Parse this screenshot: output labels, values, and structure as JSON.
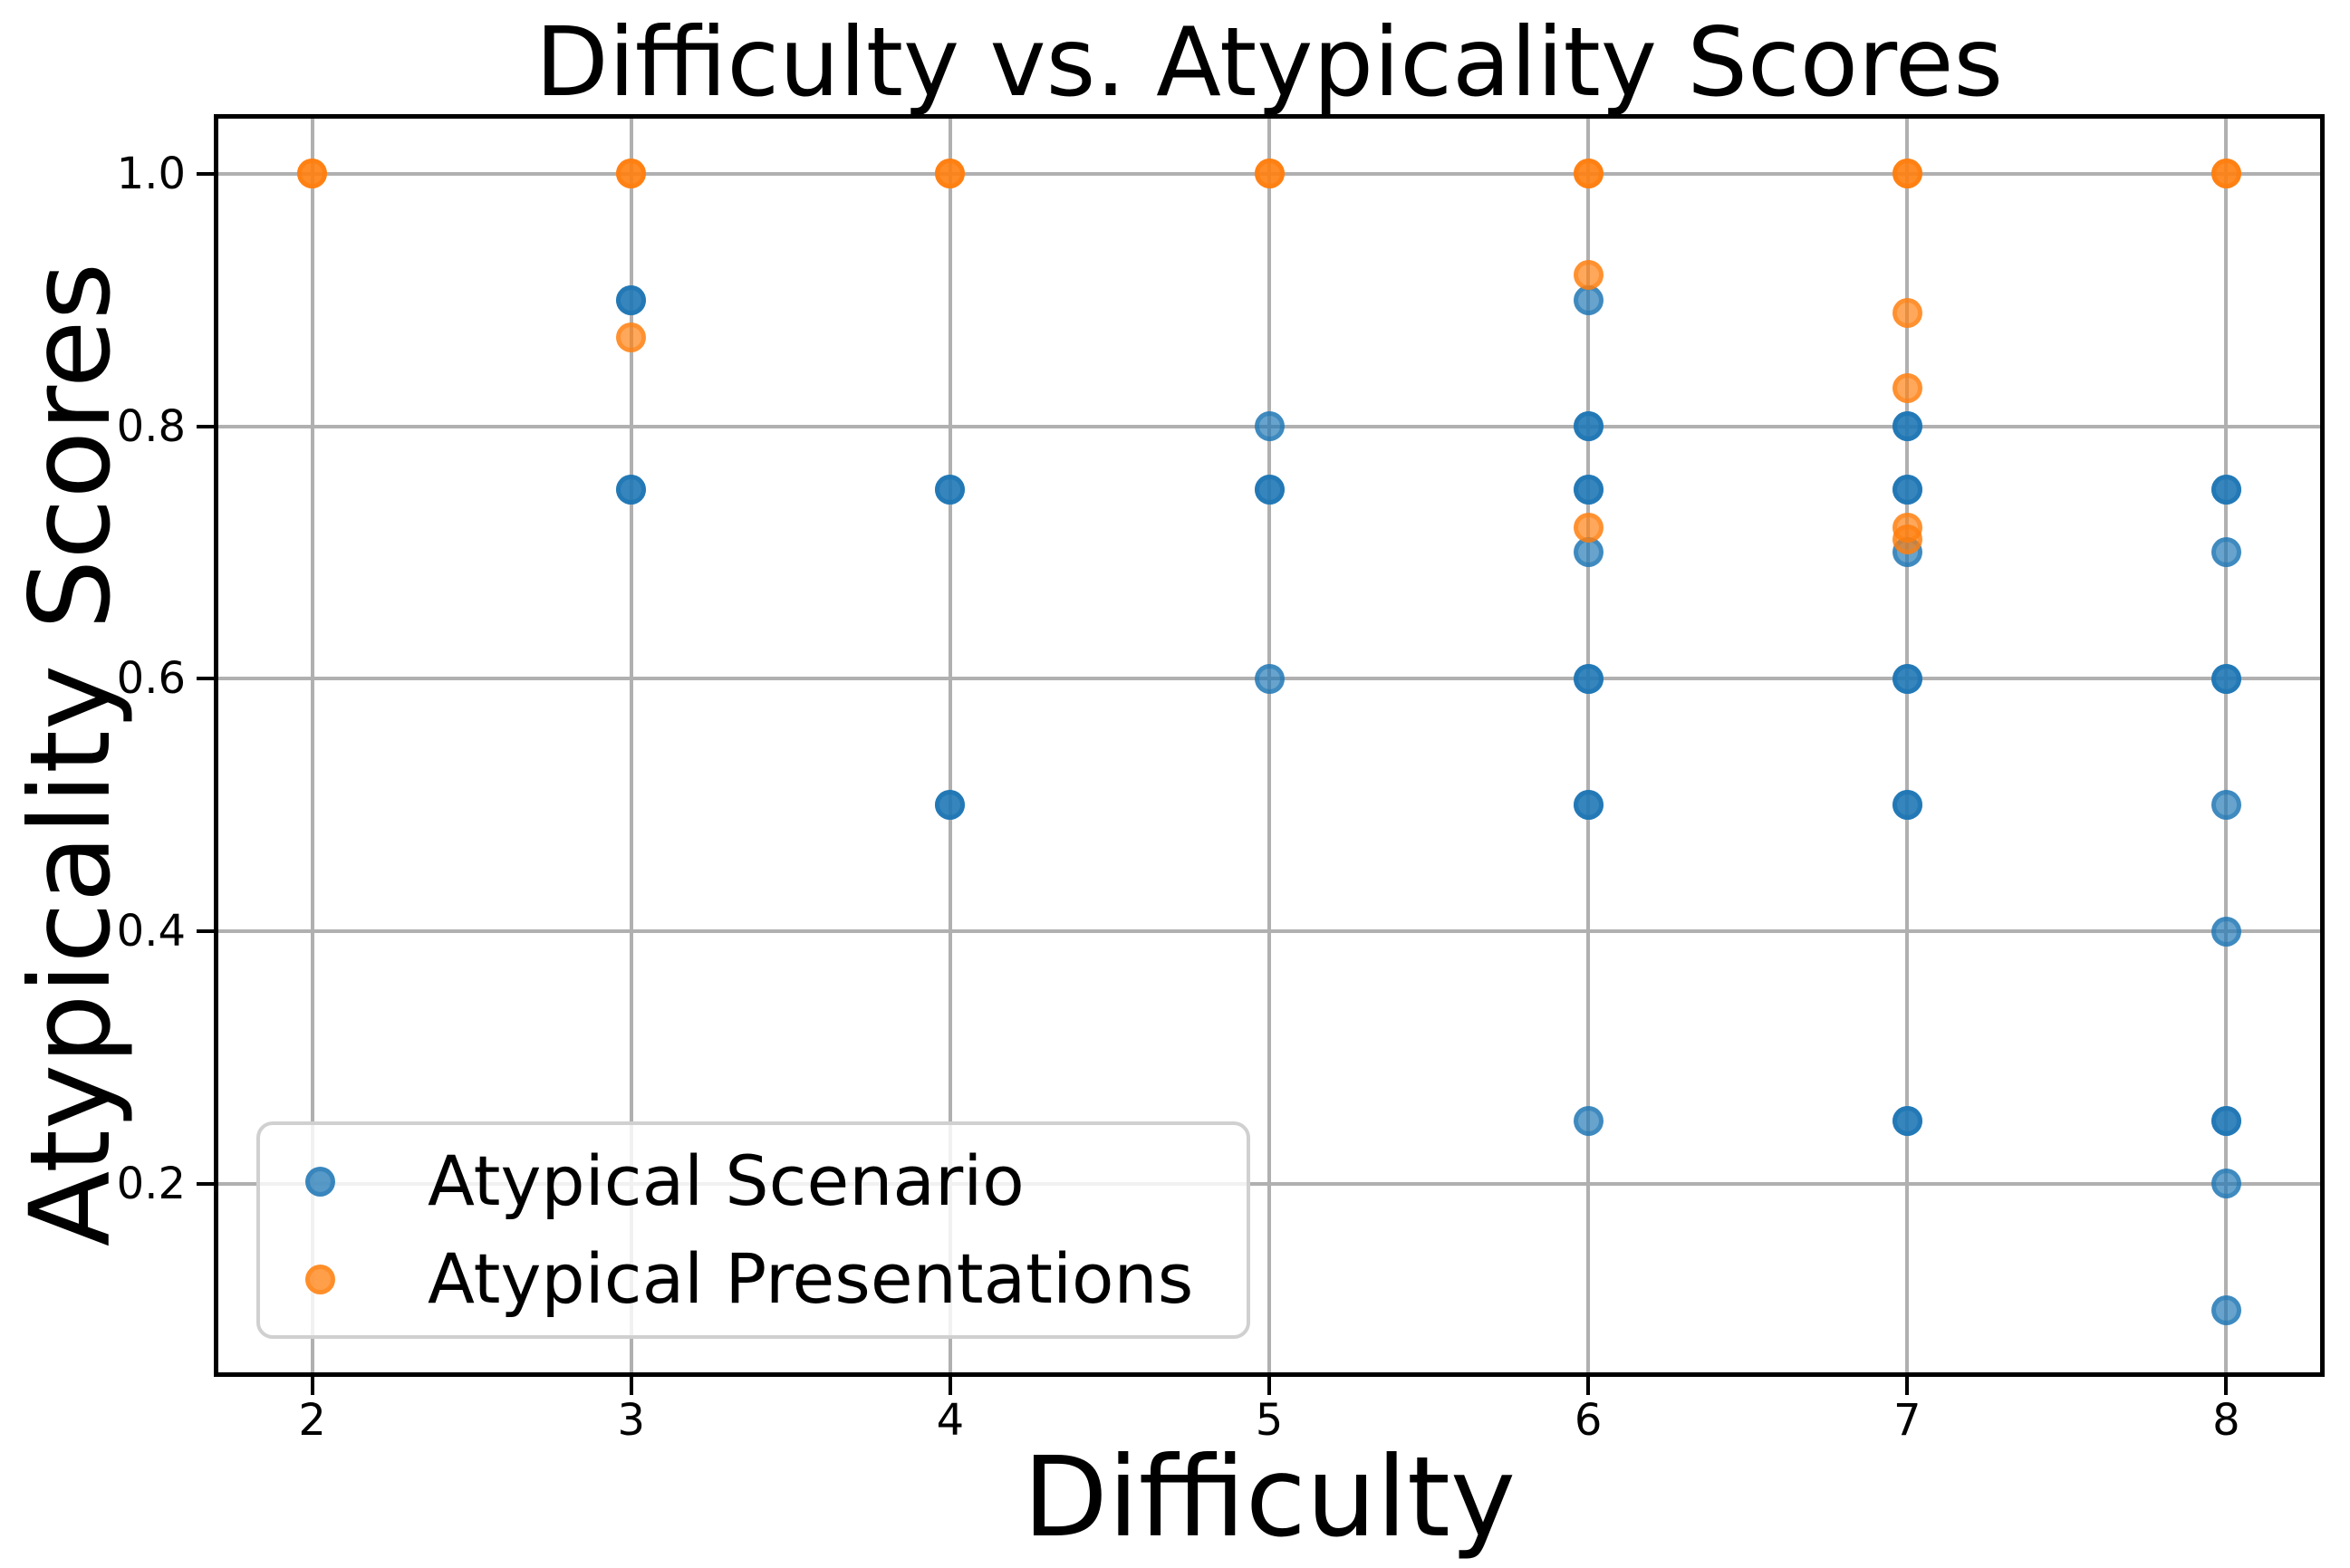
{
  "title": "Difficulty vs. Atypicality Scores",
  "axes": {
    "xlabel": "Difficulty",
    "ylabel": "Atypicality Scores"
  },
  "legend": {
    "items": [
      {
        "label": "Atypical Scenario",
        "color": "#1f77b4"
      },
      {
        "label": "Atypical Presentations",
        "color": "#ff7f0e"
      }
    ]
  },
  "colors": {
    "scenario_blue": "#1f77b4",
    "presentation_orange": "#ff7f0e",
    "grid": "#b0b0b0",
    "spine": "#000000",
    "legend_border": "#d0d0d0"
  },
  "chart_data": {
    "type": "scatter",
    "title": "Difficulty vs. Atypicality Scores",
    "xlabel": "Difficulty",
    "ylabel": "Atypicality Scores",
    "xlim": [
      1.7,
      8.3
    ],
    "ylim": [
      0.05,
      1.045
    ],
    "xticks": [
      2,
      3,
      4,
      5,
      6,
      7,
      8
    ],
    "yticks": [
      0.2,
      0.4,
      0.6,
      0.8,
      1.0
    ],
    "grid": true,
    "marker_alpha": 0.68,
    "legend_position": "lower left",
    "series": [
      {
        "name": "Atypical Scenario",
        "color": "#1f77b4",
        "points": [
          {
            "x": 3,
            "y": 0.9,
            "overlap": 2
          },
          {
            "x": 3,
            "y": 0.75,
            "overlap": 2
          },
          {
            "x": 4,
            "y": 0.75,
            "overlap": 2
          },
          {
            "x": 4,
            "y": 0.5,
            "overlap": 2
          },
          {
            "x": 5,
            "y": 0.8,
            "overlap": 1
          },
          {
            "x": 5,
            "y": 0.75,
            "overlap": 2
          },
          {
            "x": 5,
            "y": 0.6,
            "overlap": 1
          },
          {
            "x": 6,
            "y": 0.9,
            "overlap": 1
          },
          {
            "x": 6,
            "y": 0.8,
            "overlap": 2
          },
          {
            "x": 6,
            "y": 0.75,
            "overlap": 2
          },
          {
            "x": 6,
            "y": 0.7,
            "overlap": 1
          },
          {
            "x": 6,
            "y": 0.6,
            "overlap": 2
          },
          {
            "x": 6,
            "y": 0.5,
            "overlap": 2
          },
          {
            "x": 6,
            "y": 0.25,
            "overlap": 1
          },
          {
            "x": 7,
            "y": 0.8,
            "overlap": 2
          },
          {
            "x": 7,
            "y": 0.75,
            "overlap": 2
          },
          {
            "x": 7,
            "y": 0.7,
            "overlap": 1
          },
          {
            "x": 7,
            "y": 0.6,
            "overlap": 2
          },
          {
            "x": 7,
            "y": 0.5,
            "overlap": 2
          },
          {
            "x": 7,
            "y": 0.25,
            "overlap": 2
          },
          {
            "x": 8,
            "y": 0.75,
            "overlap": 2
          },
          {
            "x": 8,
            "y": 0.7,
            "overlap": 1
          },
          {
            "x": 8,
            "y": 0.6,
            "overlap": 2
          },
          {
            "x": 8,
            "y": 0.5,
            "overlap": 1
          },
          {
            "x": 8,
            "y": 0.4,
            "overlap": 1
          },
          {
            "x": 8,
            "y": 0.25,
            "overlap": 2
          },
          {
            "x": 8,
            "y": 0.2,
            "overlap": 1
          },
          {
            "x": 8,
            "y": 0.1,
            "overlap": 1
          }
        ]
      },
      {
        "name": "Atypical Presentations",
        "color": "#ff7f0e",
        "points": [
          {
            "x": 2,
            "y": 1.0,
            "overlap": 2
          },
          {
            "x": 3,
            "y": 1.0,
            "overlap": 2
          },
          {
            "x": 3,
            "y": 0.87,
            "overlap": 1
          },
          {
            "x": 4,
            "y": 1.0,
            "overlap": 2
          },
          {
            "x": 5,
            "y": 1.0,
            "overlap": 2
          },
          {
            "x": 6,
            "y": 1.0,
            "overlap": 2
          },
          {
            "x": 6,
            "y": 0.92,
            "overlap": 1
          },
          {
            "x": 6,
            "y": 0.72,
            "overlap": 1
          },
          {
            "x": 7,
            "y": 1.0,
            "overlap": 2
          },
          {
            "x": 7,
            "y": 0.89,
            "overlap": 1
          },
          {
            "x": 7,
            "y": 0.83,
            "overlap": 1
          },
          {
            "x": 7,
            "y": 0.72,
            "overlap": 1
          },
          {
            "x": 7,
            "y": 0.71,
            "overlap": 1
          },
          {
            "x": 8,
            "y": 1.0,
            "overlap": 2
          }
        ]
      }
    ]
  }
}
